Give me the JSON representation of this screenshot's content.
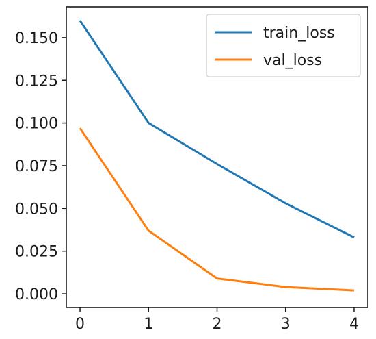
{
  "chart_data": {
    "type": "line",
    "title": "",
    "xlabel": "",
    "ylabel": "",
    "x": [
      0,
      1,
      2,
      3,
      4
    ],
    "xlim": [
      -0.2,
      4.2
    ],
    "ylim": [
      -0.008,
      0.168
    ],
    "xticks": [
      "0",
      "1",
      "2",
      "3",
      "4"
    ],
    "yticks": [
      "0.000",
      "0.025",
      "0.050",
      "0.075",
      "0.100",
      "0.125",
      "0.150"
    ],
    "grid": false,
    "legend_position": "top-right",
    "series": [
      {
        "name": "train_loss",
        "color": "#1f77b4",
        "values": [
          0.16,
          0.1,
          0.076,
          0.053,
          0.033
        ]
      },
      {
        "name": "val_loss",
        "color": "#ff7f0e",
        "values": [
          0.097,
          0.037,
          0.009,
          0.004,
          0.002
        ]
      }
    ]
  }
}
